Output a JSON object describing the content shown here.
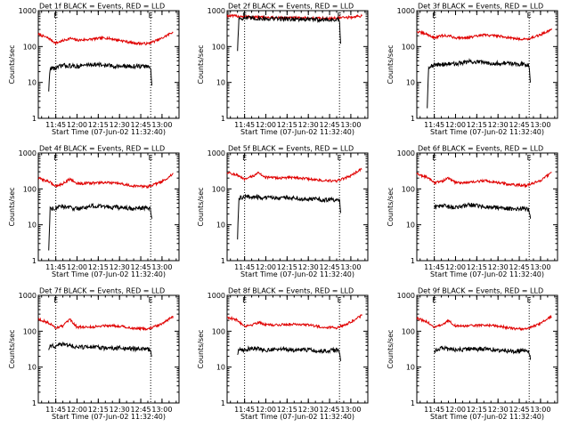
{
  "chart_data": [
    {
      "type": "line",
      "title": "Det 1f BLACK = Events, RED = LLD",
      "xlabel": "Start Time (07-Jun-02 11:32:40)",
      "ylabel": "Counts/sec",
      "yscale": "log",
      "ylim": [
        1,
        1000
      ],
      "xlim": [
        "11:32:40",
        "13:12:00"
      ],
      "x_ticks": [
        "11:45",
        "12:00",
        "12:15",
        "12:30",
        "12:45",
        "13:00"
      ],
      "y_ticks": [
        "1",
        "10",
        "100",
        "1000"
      ],
      "markers": [
        {
          "label": "E",
          "x": "11:45"
        },
        {
          "label": "E",
          "x": "12:52"
        }
      ],
      "series": [
        {
          "name": "LLD",
          "color": "#e00000",
          "x": [
            "11:32:40",
            "11:40",
            "11:45",
            "11:50",
            "11:55",
            "12:00",
            "12:10",
            "12:20",
            "12:30",
            "12:40",
            "12:50",
            "13:00",
            "13:08"
          ],
          "values": [
            220,
            170,
            125,
            145,
            170,
            150,
            160,
            175,
            150,
            125,
            120,
            170,
            260
          ]
        },
        {
          "name": "Events",
          "color": "#000000",
          "x": [
            "11:40",
            "11:41",
            "11:45",
            "11:50",
            "12:00",
            "12:10",
            "12:20",
            "12:30",
            "12:40",
            "12:50",
            "12:52",
            "12:53"
          ],
          "values": [
            6,
            25,
            25,
            30,
            28,
            32,
            30,
            28,
            28,
            28,
            25,
            6
          ]
        }
      ]
    },
    {
      "type": "line",
      "title": "Det 2f BLACK = Events, RED = LLD",
      "xlabel": "Start Time (07-Jun-02 11:32:40)",
      "ylabel": "Counts/sec",
      "yscale": "log",
      "ylim": [
        1,
        1000
      ],
      "xlim": [
        "11:32:40",
        "13:12:00"
      ],
      "x_ticks": [
        "11:45",
        "12:00",
        "12:15",
        "12:30",
        "12:45",
        "13:00"
      ],
      "y_ticks": [
        "1",
        "10",
        "100",
        "1000"
      ],
      "markers": [
        {
          "label": "E",
          "x": "11:45"
        },
        {
          "label": "E",
          "x": "12:52"
        }
      ],
      "series": [
        {
          "name": "LLD",
          "color": "#e00000",
          "x": [
            "11:32:40",
            "11:45",
            "12:00",
            "12:15",
            "12:30",
            "12:45",
            "13:00",
            "13:08"
          ],
          "values": [
            720,
            690,
            640,
            630,
            620,
            610,
            650,
            720
          ]
        },
        {
          "name": "Events",
          "color": "#000000",
          "x": [
            "11:40",
            "11:41",
            "11:45",
            "12:00",
            "12:15",
            "12:30",
            "12:45",
            "12:52",
            "12:53"
          ],
          "values": [
            80,
            620,
            620,
            600,
            590,
            570,
            560,
            560,
            70
          ]
        }
      ]
    },
    {
      "type": "line",
      "title": "Det 3f BLACK = Events, RED = LLD",
      "xlabel": "Start Time (07-Jun-02 11:32:40)",
      "ylabel": "Counts/sec",
      "yscale": "log",
      "ylim": [
        1,
        1000
      ],
      "xlim": [
        "11:32:40",
        "13:12:00"
      ],
      "x_ticks": [
        "11:45",
        "12:00",
        "12:15",
        "12:30",
        "12:45",
        "13:00"
      ],
      "y_ticks": [
        "1",
        "10",
        "100",
        "1000"
      ],
      "markers": [
        {
          "label": "E",
          "x": "11:45"
        },
        {
          "label": "E",
          "x": "12:52"
        }
      ],
      "series": [
        {
          "name": "LLD",
          "color": "#e00000",
          "x": [
            "11:32:40",
            "11:40",
            "11:45",
            "11:50",
            "11:55",
            "12:00",
            "12:10",
            "12:20",
            "12:30",
            "12:40",
            "12:50",
            "13:00",
            "13:08"
          ],
          "values": [
            260,
            220,
            175,
            200,
            200,
            175,
            180,
            210,
            200,
            170,
            160,
            210,
            310
          ]
        },
        {
          "name": "Events",
          "color": "#000000",
          "x": [
            "11:40",
            "11:41",
            "11:45",
            "11:50",
            "12:00",
            "12:10",
            "12:20",
            "12:30",
            "12:40",
            "12:50",
            "12:52",
            "12:53"
          ],
          "values": [
            2,
            28,
            30,
            32,
            33,
            38,
            36,
            34,
            34,
            32,
            30,
            8
          ]
        }
      ]
    },
    {
      "type": "line",
      "title": "Det 4f BLACK = Events, RED = LLD",
      "xlabel": "Start Time (07-Jun-02 11:32:40)",
      "ylabel": "Counts/sec",
      "yscale": "log",
      "ylim": [
        1,
        1000
      ],
      "xlim": [
        "11:32:40",
        "13:12:00"
      ],
      "x_ticks": [
        "11:45",
        "12:00",
        "12:15",
        "12:30",
        "12:45",
        "13:00"
      ],
      "y_ticks": [
        "1",
        "10",
        "100",
        "1000"
      ],
      "markers": [
        {
          "label": "E",
          "x": "11:45"
        },
        {
          "label": "E",
          "x": "12:52"
        }
      ],
      "series": [
        {
          "name": "LLD",
          "color": "#e00000",
          "x": [
            "11:32:40",
            "11:40",
            "11:45",
            "11:50",
            "11:55",
            "12:00",
            "12:10",
            "12:20",
            "12:30",
            "12:40",
            "12:50",
            "13:00",
            "13:08"
          ],
          "values": [
            200,
            160,
            120,
            140,
            190,
            140,
            145,
            150,
            140,
            120,
            115,
            160,
            260
          ]
        },
        {
          "name": "Events",
          "color": "#000000",
          "x": [
            "11:40",
            "11:41",
            "11:45",
            "11:50",
            "12:00",
            "12:10",
            "12:20",
            "12:30",
            "12:40",
            "12:50",
            "12:52",
            "12:53"
          ],
          "values": [
            2,
            28,
            30,
            32,
            28,
            33,
            32,
            30,
            28,
            30,
            26,
            12
          ]
        }
      ]
    },
    {
      "type": "line",
      "title": "Det 5f BLACK = Events, RED = LLD",
      "xlabel": "Start Time (07-Jun-02 11:32:40)",
      "ylabel": "Counts/sec",
      "yscale": "log",
      "ylim": [
        1,
        1000
      ],
      "xlim": [
        "11:32:40",
        "13:12:00"
      ],
      "x_ticks": [
        "11:45",
        "12:00",
        "12:15",
        "12:30",
        "12:45",
        "13:00"
      ],
      "y_ticks": [
        "1",
        "10",
        "100",
        "1000"
      ],
      "markers": [
        {
          "label": "E",
          "x": "11:45"
        },
        {
          "label": "E",
          "x": "12:52"
        }
      ],
      "series": [
        {
          "name": "LLD",
          "color": "#e00000",
          "x": [
            "11:32:40",
            "11:40",
            "11:45",
            "11:50",
            "11:55",
            "12:00",
            "12:10",
            "12:20",
            "12:30",
            "12:40",
            "12:50",
            "13:00",
            "13:08"
          ],
          "values": [
            290,
            240,
            180,
            220,
            280,
            210,
            200,
            210,
            190,
            170,
            165,
            230,
            380
          ]
        },
        {
          "name": "Events",
          "color": "#000000",
          "x": [
            "11:40",
            "11:41",
            "11:45",
            "11:50",
            "12:00",
            "12:10",
            "12:20",
            "12:30",
            "12:40",
            "12:50",
            "12:52",
            "12:53"
          ],
          "values": [
            4,
            55,
            60,
            60,
            56,
            58,
            56,
            52,
            50,
            50,
            48,
            20
          ]
        }
      ]
    },
    {
      "type": "line",
      "title": "Det 6f BLACK = Events, RED = LLD",
      "xlabel": "Start Time (07-Jun-02 11:32:40)",
      "ylabel": "Counts/sec",
      "yscale": "log",
      "ylim": [
        1,
        1000
      ],
      "xlim": [
        "11:32:40",
        "13:12:00"
      ],
      "x_ticks": [
        "11:45",
        "12:00",
        "12:15",
        "12:30",
        "12:45",
        "13:00"
      ],
      "y_ticks": [
        "1",
        "10",
        "100",
        "1000"
      ],
      "markers": [
        {
          "label": "E",
          "x": "11:45"
        },
        {
          "label": "E",
          "x": "12:52"
        }
      ],
      "series": [
        {
          "name": "LLD",
          "color": "#e00000",
          "x": [
            "11:32:40",
            "11:40",
            "11:45",
            "11:50",
            "11:55",
            "12:00",
            "12:10",
            "12:20",
            "12:30",
            "12:40",
            "12:50",
            "13:00",
            "13:08"
          ],
          "values": [
            260,
            210,
            150,
            160,
            200,
            150,
            150,
            170,
            150,
            130,
            125,
            170,
            290
          ]
        },
        {
          "name": "Events",
          "color": "#000000",
          "x": [
            "11:45",
            "11:50",
            "12:00",
            "12:10",
            "12:20",
            "12:30",
            "12:40",
            "12:50",
            "12:52",
            "12:53"
          ],
          "values": [
            30,
            34,
            30,
            36,
            32,
            30,
            28,
            28,
            26,
            14
          ]
        }
      ]
    },
    {
      "type": "line",
      "title": "Det 7f BLACK = Events, RED = LLD",
      "xlabel": "Start Time (07-Jun-02 11:32:40)",
      "ylabel": "Counts/sec",
      "yscale": "log",
      "ylim": [
        1,
        1000
      ],
      "xlim": [
        "11:32:40",
        "13:12:00"
      ],
      "x_ticks": [
        "11:45",
        "12:00",
        "12:15",
        "12:30",
        "12:45",
        "13:00"
      ],
      "y_ticks": [
        "1",
        "10",
        "100",
        "1000"
      ],
      "markers": [
        {
          "label": "E",
          "x": "11:45"
        },
        {
          "label": "E",
          "x": "12:52"
        }
      ],
      "series": [
        {
          "name": "LLD",
          "color": "#e00000",
          "x": [
            "11:32:40",
            "11:40",
            "11:45",
            "11:50",
            "11:55",
            "12:00",
            "12:10",
            "12:20",
            "12:30",
            "12:40",
            "12:50",
            "13:00",
            "13:08"
          ],
          "values": [
            220,
            170,
            125,
            140,
            210,
            130,
            130,
            145,
            140,
            120,
            115,
            160,
            260
          ]
        },
        {
          "name": "Events",
          "color": "#000000",
          "x": [
            "11:40",
            "11:41",
            "11:45",
            "11:50",
            "12:00",
            "12:10",
            "12:20",
            "12:30",
            "12:40",
            "12:50",
            "12:52",
            "12:53"
          ],
          "values": [
            30,
            40,
            38,
            44,
            36,
            36,
            34,
            34,
            32,
            32,
            30,
            16
          ]
        }
      ]
    },
    {
      "type": "line",
      "title": "Det 8f BLACK = Events, RED = LLD",
      "xlabel": "Start Time (07-Jun-02 11:32:40)",
      "ylabel": "Counts/sec",
      "yscale": "log",
      "ylim": [
        1,
        1000
      ],
      "xlim": [
        "11:32:40",
        "13:12:00"
      ],
      "x_ticks": [
        "11:45",
        "12:00",
        "12:15",
        "12:30",
        "12:45",
        "13:00"
      ],
      "y_ticks": [
        "1",
        "10",
        "100",
        "1000"
      ],
      "markers": [
        {
          "label": "E",
          "x": "11:45"
        },
        {
          "label": "E",
          "x": "12:52"
        }
      ],
      "series": [
        {
          "name": "LLD",
          "color": "#e00000",
          "x": [
            "11:32:40",
            "11:40",
            "11:45",
            "11:50",
            "11:55",
            "12:00",
            "12:10",
            "12:20",
            "12:30",
            "12:40",
            "12:50",
            "13:00",
            "13:08"
          ],
          "values": [
            250,
            200,
            140,
            150,
            180,
            150,
            150,
            160,
            150,
            130,
            125,
            180,
            280
          ]
        },
        {
          "name": "Events",
          "color": "#000000",
          "x": [
            "11:40",
            "11:41",
            "11:45",
            "11:50",
            "12:00",
            "12:10",
            "12:20",
            "12:30",
            "12:40",
            "12:50",
            "12:52",
            "12:53"
          ],
          "values": [
            22,
            32,
            30,
            34,
            30,
            32,
            30,
            30,
            28,
            30,
            28,
            14
          ]
        }
      ]
    },
    {
      "type": "line",
      "title": "Det 9f BLACK = Events, RED = LLD",
      "xlabel": "Start Time (07-Jun-02 11:32:40)",
      "ylabel": "Counts/sec",
      "yscale": "log",
      "ylim": [
        1,
        1000
      ],
      "xlim": [
        "11:32:40",
        "13:12:00"
      ],
      "x_ticks": [
        "11:45",
        "12:00",
        "12:15",
        "12:30",
        "12:45",
        "13:00"
      ],
      "y_ticks": [
        "1",
        "10",
        "100",
        "1000"
      ],
      "markers": [
        {
          "label": "E",
          "x": "11:45"
        },
        {
          "label": "E",
          "x": "12:52"
        }
      ],
      "series": [
        {
          "name": "LLD",
          "color": "#e00000",
          "x": [
            "11:32:40",
            "11:40",
            "11:45",
            "11:50",
            "11:55",
            "12:00",
            "12:10",
            "12:20",
            "12:30",
            "12:40",
            "12:50",
            "13:00",
            "13:08"
          ],
          "values": [
            230,
            180,
            130,
            145,
            200,
            140,
            140,
            150,
            140,
            120,
            115,
            160,
            270
          ]
        },
        {
          "name": "Events",
          "color": "#000000",
          "x": [
            "11:45",
            "11:50",
            "12:00",
            "12:10",
            "12:20",
            "12:30",
            "12:40",
            "12:50",
            "12:52",
            "12:53"
          ],
          "values": [
            28,
            34,
            30,
            32,
            32,
            30,
            28,
            28,
            26,
            16
          ]
        }
      ]
    }
  ]
}
